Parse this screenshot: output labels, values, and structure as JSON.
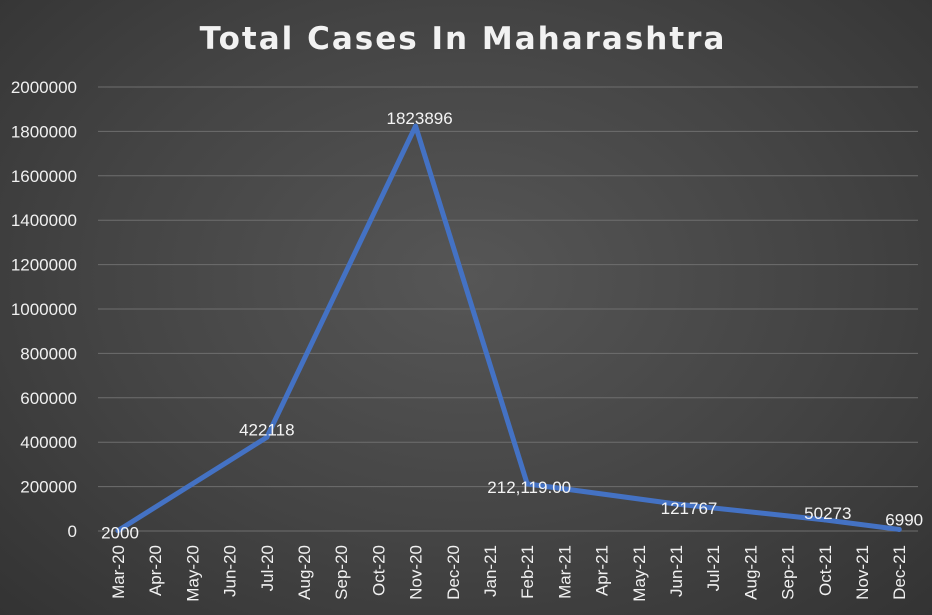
{
  "chart_data": {
    "type": "line",
    "title": "Total Cases In Maharashtra",
    "xlabel": "",
    "ylabel": "",
    "ylim": [
      0,
      2000000
    ],
    "yticks": [
      "0",
      "200000",
      "400000",
      "600000",
      "800000",
      "1000000",
      "1200000",
      "1400000",
      "1600000",
      "1800000",
      "2000000"
    ],
    "categories": [
      "Mar-20",
      "Apr-20",
      "May-20",
      "Jun-20",
      "Jul-20",
      "Aug-20",
      "Sep-20",
      "Oct-20",
      "Nov-20",
      "Dec-20",
      "Jan-21",
      "Feb-21",
      "Mar-21",
      "Apr-21",
      "May-21",
      "Jun-21",
      "Jul-21",
      "Aug-21",
      "Sep-21",
      "Oct-21",
      "Nov-21",
      "Dec-21"
    ],
    "grid": true,
    "legend": "none",
    "line_color": "#4472c4",
    "series": [
      {
        "points": [
          {
            "x": "Mar-20",
            "y": 2000,
            "label": "2000"
          },
          {
            "x": "Jul-20",
            "y": 422118,
            "label": "422118"
          },
          {
            "x": "Nov-20",
            "y": 1823896,
            "label": "1823896"
          },
          {
            "x": "Feb-21",
            "y": 212119,
            "label": "212,119.00"
          },
          {
            "x": "Jun-21",
            "y": 121767,
            "label": "121767"
          },
          {
            "x": "Oct-21",
            "y": 50273,
            "label": "50273"
          },
          {
            "x": "Dec-21",
            "y": 6990,
            "label": "6990"
          }
        ]
      }
    ]
  }
}
